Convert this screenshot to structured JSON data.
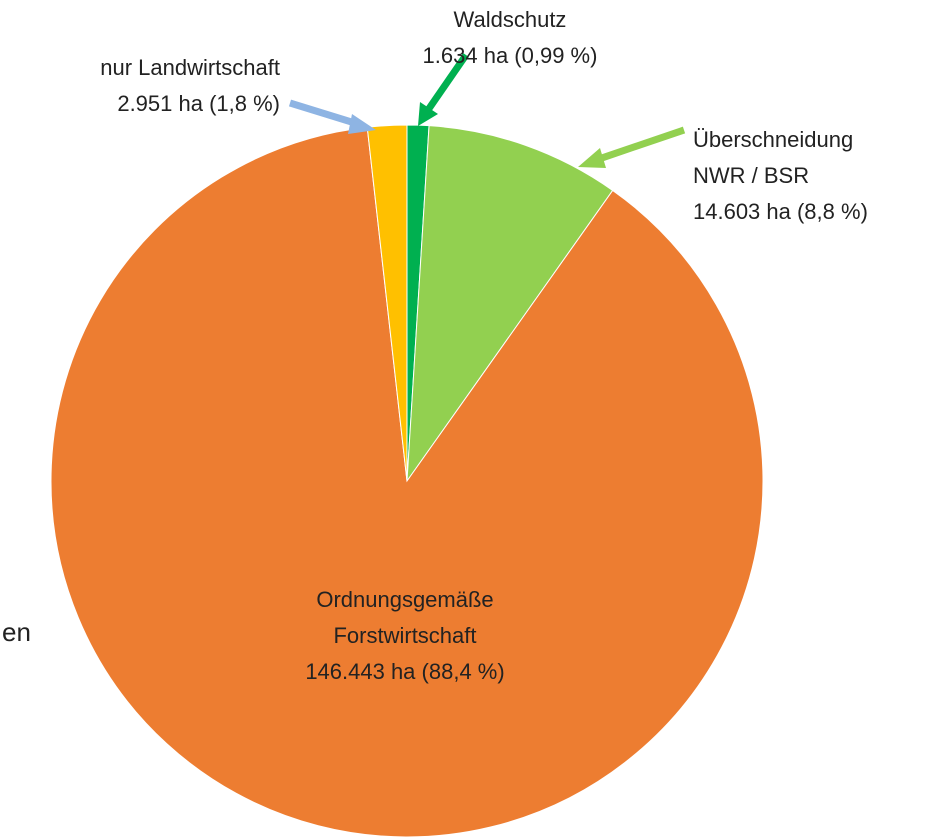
{
  "chart_data": {
    "type": "pie",
    "categories": [
      "Waldschutz",
      "Überschneidung NWR / BSR",
      "Ordnungsgemäße Forstwirtschaft",
      "nur Landwirtschaft"
    ],
    "values": [
      1634,
      14603,
      146443,
      2951
    ],
    "value_labels": [
      "1.634 ha (0,99 %)",
      "14.603 ha (8,8 %)",
      "146.443 ha (88,4 %)",
      "2.951 ha (1,8 %)"
    ],
    "colors": [
      "#00b050",
      "#92d050",
      "#ed7d31",
      "#ffc000"
    ]
  },
  "fragment_text": "en"
}
